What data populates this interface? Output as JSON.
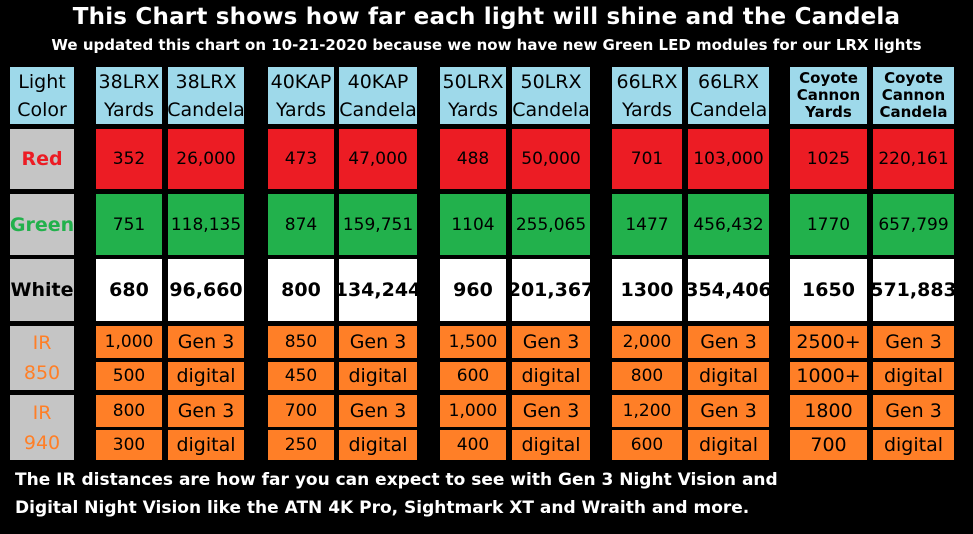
{
  "title": "This Chart shows how far each light will shine and the Candela",
  "subtitle": "We updated this chart on 10-21-2020 because we now have new Green LED modules for our LRX lights",
  "colors": {
    "header": "#9ed9ea",
    "label": "#c5c5c5",
    "red_row": "#ec1c24",
    "green_row": "#22b14c",
    "white_row": "#ffffff",
    "ir_row": "#ff7f27",
    "red_text": "#ec1c24",
    "green_text": "#22b14c",
    "ir_text": "#ff7f27"
  },
  "chart_data": {
    "type": "table",
    "header": {
      "label": "Light Color",
      "columns": [
        "38LRX Yards",
        "38LRX Candela",
        "40KAP Yards",
        "40KAP Candela",
        "50LRX Yards",
        "50LRX Candela",
        "66LRX Yards",
        "66LRX Candela",
        "Coyote Cannon Yards",
        "Coyote Cannon Candela"
      ]
    },
    "rows": [
      {
        "label": "Red",
        "values": [
          "352",
          "26,000",
          "473",
          "47,000",
          "488",
          "50,000",
          "701",
          "103,000",
          "1025",
          "220,161"
        ]
      },
      {
        "label": "Green",
        "values": [
          "751",
          "118,135",
          "874",
          "159,751",
          "1104",
          "255,065",
          "1477",
          "456,432",
          "1770",
          "657,799"
        ]
      },
      {
        "label": "White",
        "values": [
          "680",
          "96,660",
          "800",
          "134,244",
          "960",
          "201,367",
          "1300",
          "354,406",
          "1650",
          "571,883"
        ]
      }
    ],
    "ir_groups": [
      {
        "label": "IR 850",
        "rows": [
          [
            "1,000",
            "Gen 3",
            "850",
            "Gen 3",
            "1,500",
            "Gen 3",
            "2,000",
            "Gen 3",
            "2500+",
            "Gen 3"
          ],
          [
            "500",
            "digital",
            "450",
            "digital",
            "600",
            "digital",
            "800",
            "digital",
            "1000+",
            "digital"
          ]
        ]
      },
      {
        "label": "IR 940",
        "rows": [
          [
            "800",
            "Gen 3",
            "700",
            "Gen 3",
            "1,000",
            "Gen 3",
            "1,200",
            "Gen 3",
            "1800",
            "Gen 3"
          ],
          [
            "300",
            "digital",
            "250",
            "digital",
            "400",
            "digital",
            "600",
            "digital",
            "700",
            "digital"
          ]
        ]
      }
    ]
  },
  "footnote": {
    "line1": "The IR distances are how far you can expect to see with Gen 3 Night Vision and",
    "line2": "Digital Night Vision like the ATN 4K Pro, Sightmark XT and Wraith and more."
  }
}
